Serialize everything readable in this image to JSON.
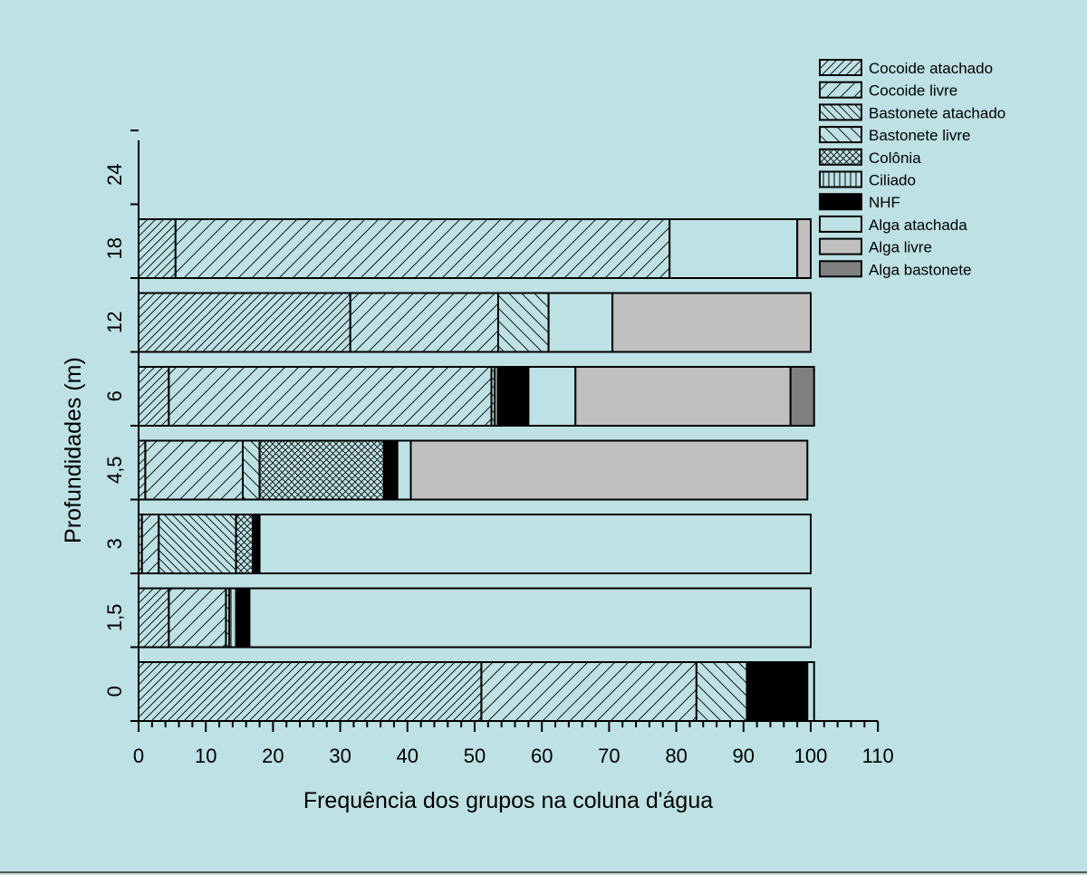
{
  "colors": {
    "background": "#bde1e4",
    "stroke": "#000000"
  },
  "chart_data": {
    "type": "bar",
    "orientation": "horizontal",
    "stacked": true,
    "title": "",
    "xlabel": "Frequência dos grupos na coluna d'água",
    "ylabel": "Profundidades (m)",
    "xlim": [
      0,
      110
    ],
    "xticks": [
      "0",
      "10",
      "20",
      "30",
      "40",
      "50",
      "60",
      "70",
      "80",
      "90",
      "100",
      "110"
    ],
    "categories": [
      "0",
      "1,5",
      "3",
      "4,5",
      "6",
      "12",
      "18",
      "24"
    ],
    "legend_position": "top-right",
    "grid": false,
    "series": [
      {
        "name": "Cocoide atachado",
        "pattern": "hatch-dense-forward",
        "color": "#bde1e4",
        "values": [
          51,
          4.5,
          0.5,
          1,
          4.5,
          31.5,
          5.5,
          0
        ]
      },
      {
        "name": "Cocoide livre",
        "pattern": "hatch-sparse-forward",
        "color": "#bde1e4",
        "values": [
          32,
          8.5,
          2.5,
          14.5,
          48,
          22,
          73.5,
          0
        ]
      },
      {
        "name": "Bastonete atachado",
        "pattern": "hatch-dense-back",
        "color": "#bde1e4",
        "values": [
          0,
          0,
          11.5,
          0,
          0.5,
          0,
          0,
          0
        ]
      },
      {
        "name": "Bastonete livre",
        "pattern": "hatch-sparse-back",
        "color": "#bde1e4",
        "values": [
          7.5,
          0.5,
          0,
          2.5,
          0,
          7.5,
          0,
          0
        ]
      },
      {
        "name": "Colônia",
        "pattern": "crosshatch",
        "color": "#bde1e4",
        "values": [
          0,
          0,
          2.5,
          18.5,
          0,
          0,
          0,
          0
        ]
      },
      {
        "name": "Ciliado",
        "pattern": "vertical-lines",
        "color": "#bde1e4",
        "values": [
          0,
          1,
          0,
          0,
          0.5,
          0,
          0,
          0
        ]
      },
      {
        "name": "NHF",
        "pattern": "solid",
        "color": "#000000",
        "values": [
          9,
          2,
          1,
          2,
          4.5,
          0,
          0,
          0
        ]
      },
      {
        "name": "Alga atachada",
        "pattern": "solid",
        "color": "#bde1e4",
        "values": [
          1,
          83.5,
          82,
          2,
          7,
          9.5,
          19,
          0
        ]
      },
      {
        "name": "Alga livre",
        "pattern": "solid",
        "color": "#c0c0c0",
        "values": [
          0,
          0,
          0,
          59,
          32,
          29.5,
          2,
          0
        ]
      },
      {
        "name": "Alga bastonete",
        "pattern": "solid",
        "color": "#808080",
        "values": [
          0,
          0,
          0,
          0,
          3.5,
          0,
          0,
          0
        ]
      }
    ]
  }
}
